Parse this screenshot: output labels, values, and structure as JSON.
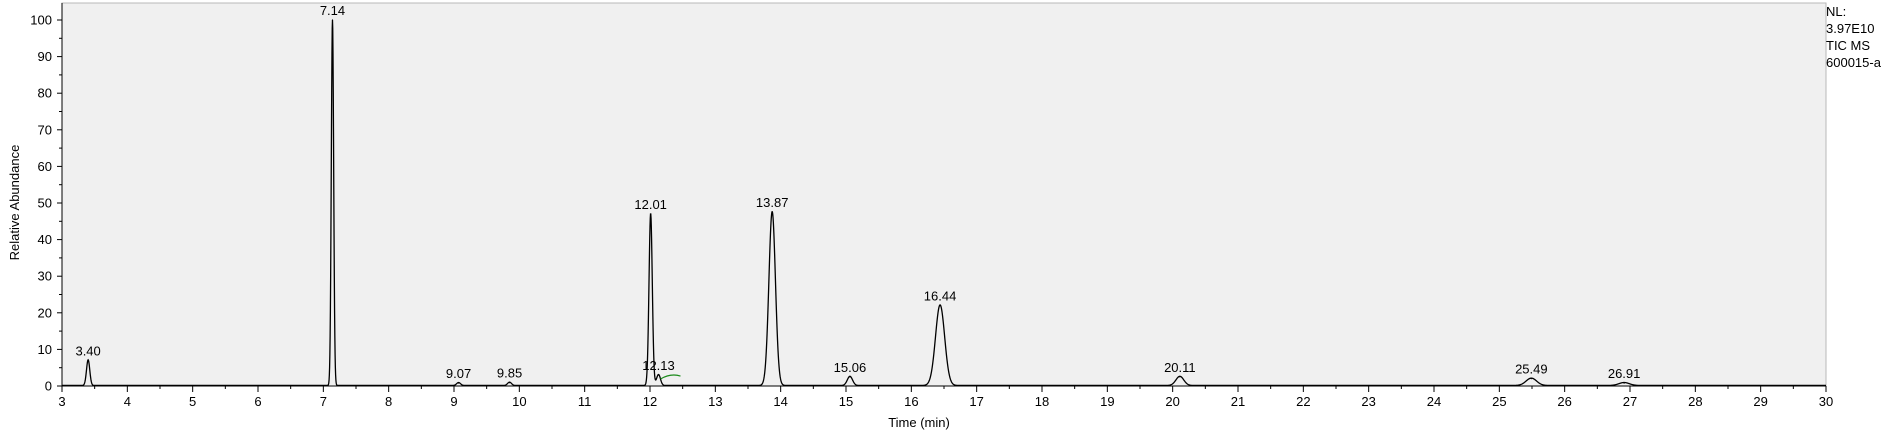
{
  "info_panel": {
    "nl_label": "NL:",
    "nl_value": "3.97E10",
    "scan_filter": "TIC  MS",
    "file_name": "600015-a"
  },
  "chart_data": {
    "type": "line",
    "title": "",
    "xlabel": "Time (min)",
    "ylabel": "Relative Abundance",
    "xlim": [
      3,
      30
    ],
    "ylim": [
      0,
      100
    ],
    "x_ticks": [
      3,
      4,
      5,
      6,
      7,
      8,
      9,
      10,
      11,
      12,
      13,
      14,
      15,
      16,
      17,
      18,
      19,
      20,
      21,
      22,
      23,
      24,
      25,
      26,
      27,
      28,
      29,
      30
    ],
    "y_ticks": [
      0,
      10,
      20,
      30,
      40,
      50,
      60,
      70,
      80,
      90,
      100
    ],
    "grid": false,
    "legend": "none",
    "colors": {
      "trace": "#000000",
      "plot_bg": "#f0f0f0",
      "axis": "#000000",
      "annotation_mark": "#1a8a1a"
    },
    "peaks": [
      {
        "rt": 3.4,
        "label": "3.40",
        "height": 7.0,
        "width": 0.025
      },
      {
        "rt": 7.14,
        "label": "7.14",
        "height": 100.0,
        "width": 0.018
      },
      {
        "rt": 9.07,
        "label": "9.07",
        "height": 0.8,
        "width": 0.03
      },
      {
        "rt": 9.85,
        "label": "9.85",
        "height": 0.9,
        "width": 0.03
      },
      {
        "rt": 12.01,
        "label": "12.01",
        "height": 47.0,
        "width": 0.025
      },
      {
        "rt": 12.13,
        "label": "12.13",
        "height": 3.0,
        "width": 0.03
      },
      {
        "rt": 13.87,
        "label": "13.87",
        "height": 47.5,
        "width": 0.05
      },
      {
        "rt": 15.06,
        "label": "15.06",
        "height": 2.5,
        "width": 0.04
      },
      {
        "rt": 16.44,
        "label": "16.44",
        "height": 22.0,
        "width": 0.07
      },
      {
        "rt": 20.11,
        "label": "20.11",
        "height": 2.5,
        "width": 0.06
      },
      {
        "rt": 25.49,
        "label": "25.49",
        "height": 2.0,
        "width": 0.08
      },
      {
        "rt": 26.91,
        "label": "26.91",
        "height": 0.8,
        "width": 0.08
      }
    ]
  }
}
